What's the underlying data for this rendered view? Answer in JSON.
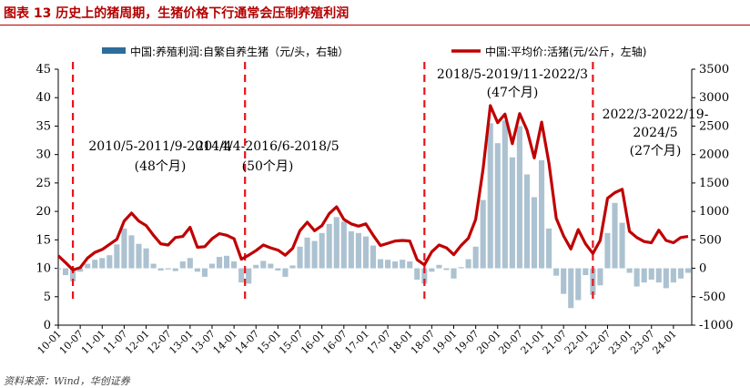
{
  "figure": {
    "title": "图表 13   历史上的猪周期，生猪价格下行通常会压制养殖利润",
    "source": "资料来源：Wind，华创证券"
  },
  "colors": {
    "line": "#c00000",
    "bars": "#9db7c9",
    "dashes": "#e8141c",
    "title": "#b40000"
  },
  "chart_data": {
    "type": "bar+line",
    "legend_position": "top",
    "grid": false,
    "x_ticks": [
      "10-01",
      "10-07",
      "11-01",
      "11-07",
      "12-01",
      "12-07",
      "13-01",
      "13-07",
      "14-01",
      "14-07",
      "15-01",
      "15-07",
      "16-01",
      "16-07",
      "17-01",
      "17-07",
      "18-01",
      "18-07",
      "19-01",
      "19-07",
      "20-01",
      "20-07",
      "21-01",
      "21-07",
      "22-01",
      "22-07",
      "23-01",
      "23-07",
      "24-01"
    ],
    "left_axis": {
      "ylim": [
        0,
        45
      ],
      "ticks": [
        0,
        5,
        10,
        15,
        20,
        25,
        30,
        35,
        40,
        45
      ]
    },
    "right_axis": {
      "ylim": [
        -1000,
        3500
      ],
      "ticks": [
        -1000,
        -500,
        0,
        500,
        1000,
        1500,
        2000,
        2500,
        3000,
        3500
      ]
    },
    "x_start": "2010-01",
    "x_end": "2024-06",
    "series": [
      {
        "name": "中国:养殖利润:自繁自养生猪（元/头，右轴）",
        "type": "bar",
        "axis": "right",
        "points": [
          [
            "2010-01",
            -20
          ],
          [
            "2010-03",
            -120
          ],
          [
            "2010-05",
            -230
          ],
          [
            "2010-07",
            -60
          ],
          [
            "2010-09",
            80
          ],
          [
            "2010-11",
            150
          ],
          [
            "2011-01",
            180
          ],
          [
            "2011-03",
            230
          ],
          [
            "2011-05",
            420
          ],
          [
            "2011-07",
            700
          ],
          [
            "2011-09",
            580
          ],
          [
            "2011-11",
            430
          ],
          [
            "2012-01",
            350
          ],
          [
            "2012-03",
            80
          ],
          [
            "2012-05",
            -40
          ],
          [
            "2012-07",
            -20
          ],
          [
            "2012-09",
            -50
          ],
          [
            "2012-11",
            120
          ],
          [
            "2013-01",
            180
          ],
          [
            "2013-03",
            -60
          ],
          [
            "2013-05",
            -150
          ],
          [
            "2013-07",
            80
          ],
          [
            "2013-09",
            200
          ],
          [
            "2013-11",
            220
          ],
          [
            "2014-01",
            120
          ],
          [
            "2014-03",
            -250
          ],
          [
            "2014-05",
            -270
          ],
          [
            "2014-07",
            60
          ],
          [
            "2014-09",
            130
          ],
          [
            "2014-11",
            80
          ],
          [
            "2015-01",
            -40
          ],
          [
            "2015-03",
            -150
          ],
          [
            "2015-05",
            50
          ],
          [
            "2015-07",
            380
          ],
          [
            "2015-09",
            540
          ],
          [
            "2015-11",
            480
          ],
          [
            "2016-01",
            620
          ],
          [
            "2016-03",
            780
          ],
          [
            "2016-05",
            900
          ],
          [
            "2016-07",
            820
          ],
          [
            "2016-09",
            650
          ],
          [
            "2016-11",
            620
          ],
          [
            "2017-01",
            560
          ],
          [
            "2017-03",
            400
          ],
          [
            "2017-05",
            160
          ],
          [
            "2017-07",
            150
          ],
          [
            "2017-09",
            120
          ],
          [
            "2017-11",
            150
          ],
          [
            "2018-01",
            120
          ],
          [
            "2018-03",
            -200
          ],
          [
            "2018-05",
            -270
          ],
          [
            "2018-07",
            -60
          ],
          [
            "2018-09",
            60
          ],
          [
            "2018-11",
            -30
          ],
          [
            "2019-01",
            -180
          ],
          [
            "2019-03",
            20
          ],
          [
            "2019-05",
            160
          ],
          [
            "2019-07",
            380
          ],
          [
            "2019-09",
            1200
          ],
          [
            "2019-11",
            2550
          ],
          [
            "2020-01",
            2200
          ],
          [
            "2020-03",
            2600
          ],
          [
            "2020-05",
            1950
          ],
          [
            "2020-07",
            2500
          ],
          [
            "2020-09",
            1650
          ],
          [
            "2020-11",
            1250
          ],
          [
            "2021-01",
            1900
          ],
          [
            "2021-03",
            700
          ],
          [
            "2021-05",
            -130
          ],
          [
            "2021-07",
            -450
          ],
          [
            "2021-09",
            -700
          ],
          [
            "2021-11",
            -560
          ],
          [
            "2022-01",
            -120
          ],
          [
            "2022-03",
            -470
          ],
          [
            "2022-05",
            -300
          ],
          [
            "2022-07",
            620
          ],
          [
            "2022-09",
            1150
          ],
          [
            "2022-11",
            800
          ],
          [
            "2023-01",
            -80
          ],
          [
            "2023-03",
            -320
          ],
          [
            "2023-05",
            -250
          ],
          [
            "2023-07",
            -200
          ],
          [
            "2023-09",
            -250
          ],
          [
            "2023-11",
            -350
          ],
          [
            "2024-01",
            -250
          ],
          [
            "2024-03",
            -180
          ],
          [
            "2024-05",
            -80
          ]
        ]
      },
      {
        "name": "中国:平均价:活猪(元/公斤，左轴)",
        "type": "line",
        "axis": "left",
        "points": [
          [
            "2010-01",
            12.2
          ],
          [
            "2010-03",
            11.0
          ],
          [
            "2010-05",
            9.7
          ],
          [
            "2010-07",
            10.1
          ],
          [
            "2010-09",
            11.8
          ],
          [
            "2010-11",
            12.8
          ],
          [
            "2011-01",
            13.3
          ],
          [
            "2011-03",
            14.2
          ],
          [
            "2011-05",
            15.1
          ],
          [
            "2011-07",
            18.3
          ],
          [
            "2011-09",
            19.7
          ],
          [
            "2011-11",
            18.3
          ],
          [
            "2012-01",
            17.5
          ],
          [
            "2012-03",
            15.8
          ],
          [
            "2012-05",
            14.3
          ],
          [
            "2012-07",
            14.1
          ],
          [
            "2012-09",
            15.4
          ],
          [
            "2012-11",
            15.6
          ],
          [
            "2013-01",
            17.2
          ],
          [
            "2013-03",
            13.7
          ],
          [
            "2013-05",
            13.8
          ],
          [
            "2013-07",
            15.2
          ],
          [
            "2013-09",
            16.1
          ],
          [
            "2013-11",
            15.8
          ],
          [
            "2014-01",
            15.2
          ],
          [
            "2014-03",
            11.6
          ],
          [
            "2014-05",
            12.3
          ],
          [
            "2014-07",
            13.1
          ],
          [
            "2014-09",
            14.1
          ],
          [
            "2014-11",
            13.6
          ],
          [
            "2015-01",
            13.2
          ],
          [
            "2015-03",
            12.3
          ],
          [
            "2015-05",
            13.5
          ],
          [
            "2015-07",
            16.6
          ],
          [
            "2015-09",
            18.1
          ],
          [
            "2015-11",
            16.6
          ],
          [
            "2016-01",
            17.5
          ],
          [
            "2016-03",
            19.6
          ],
          [
            "2016-05",
            20.8
          ],
          [
            "2016-07",
            18.6
          ],
          [
            "2016-09",
            17.8
          ],
          [
            "2016-11",
            17.4
          ],
          [
            "2017-01",
            17.8
          ],
          [
            "2017-03",
            15.8
          ],
          [
            "2017-05",
            14.0
          ],
          [
            "2017-07",
            14.4
          ],
          [
            "2017-09",
            14.8
          ],
          [
            "2017-11",
            14.9
          ],
          [
            "2018-01",
            14.8
          ],
          [
            "2018-03",
            11.5
          ],
          [
            "2018-05",
            10.6
          ],
          [
            "2018-07",
            12.9
          ],
          [
            "2018-09",
            14.1
          ],
          [
            "2018-11",
            13.6
          ],
          [
            "2019-01",
            12.4
          ],
          [
            "2019-03",
            14.0
          ],
          [
            "2019-05",
            15.3
          ],
          [
            "2019-07",
            18.6
          ],
          [
            "2019-09",
            27.4
          ],
          [
            "2019-11",
            38.6
          ],
          [
            "2020-01",
            35.6
          ],
          [
            "2020-03",
            37.1
          ],
          [
            "2020-05",
            31.9
          ],
          [
            "2020-07",
            37.2
          ],
          [
            "2020-09",
            34.3
          ],
          [
            "2020-11",
            29.4
          ],
          [
            "2021-01",
            35.7
          ],
          [
            "2021-03",
            28.5
          ],
          [
            "2021-05",
            18.8
          ],
          [
            "2021-07",
            15.7
          ],
          [
            "2021-09",
            13.4
          ],
          [
            "2021-11",
            16.8
          ],
          [
            "2022-01",
            14.3
          ],
          [
            "2022-03",
            12.6
          ],
          [
            "2022-05",
            14.9
          ],
          [
            "2022-07",
            22.3
          ],
          [
            "2022-09",
            23.3
          ],
          [
            "2022-11",
            23.9
          ],
          [
            "2023-01",
            16.5
          ],
          [
            "2023-03",
            15.4
          ],
          [
            "2023-05",
            14.7
          ],
          [
            "2023-07",
            14.5
          ],
          [
            "2023-09",
            16.7
          ],
          [
            "2023-11",
            14.9
          ],
          [
            "2024-01",
            14.5
          ],
          [
            "2024-03",
            15.4
          ],
          [
            "2024-05",
            15.6
          ]
        ]
      }
    ],
    "annotations": [
      {
        "lines": [
          "2010/5-2011/9-2014/4",
          "(48个月)"
        ]
      },
      {
        "lines": [
          "2014/4-2016/6-2018/5",
          "(50个月)"
        ]
      },
      {
        "lines": [
          "2018/5-2019/11-2022/3",
          "(47个月)"
        ]
      },
      {
        "lines": [
          "2022/3-2022/19-",
          "2024/5",
          "(27个月)"
        ]
      }
    ],
    "dividers": [
      "2010-05",
      "2014-04",
      "2018-05",
      "2022-03"
    ]
  }
}
